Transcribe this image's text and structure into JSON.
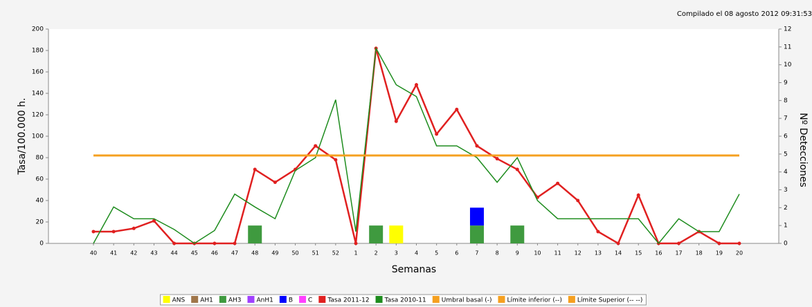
{
  "chart_data": {
    "type": "combo",
    "title": "Compilado el 08 agosto 2012 09:31:53",
    "x_label": "Semanas",
    "y_label": "Tasa/100.000 h.",
    "y2_label": "Nº Detecciones",
    "categories": [
      "40",
      "41",
      "42",
      "43",
      "44",
      "45",
      "46",
      "47",
      "48",
      "49",
      "50",
      "51",
      "52",
      "1",
      "2",
      "3",
      "4",
      "5",
      "6",
      "7",
      "8",
      "9",
      "10",
      "11",
      "12",
      "13",
      "14",
      "15",
      "16",
      "17",
      "18",
      "19",
      "20"
    ],
    "ylim": [
      0,
      200
    ],
    "yticks": [
      0,
      20,
      40,
      60,
      80,
      100,
      120,
      140,
      160,
      180,
      200
    ],
    "y2lim": [
      0,
      12
    ],
    "y2ticks": [
      0,
      1,
      2,
      3,
      4,
      5,
      6,
      7,
      8,
      9,
      10,
      11,
      12
    ],
    "series": [
      {
        "name": "ANS",
        "type": "bar",
        "axis": "y2",
        "color": "#ffff00",
        "values": [
          0,
          0,
          0,
          0,
          0,
          0,
          0,
          0,
          0,
          0,
          0,
          0,
          0,
          0,
          0,
          1,
          0,
          0,
          0,
          0,
          0,
          0,
          0,
          0,
          0,
          0,
          0,
          0,
          0,
          0,
          0,
          0,
          0
        ]
      },
      {
        "name": "AH1",
        "type": "bar",
        "axis": "y2",
        "color": "#a0764a",
        "values": [
          0,
          0,
          0,
          0,
          0,
          0,
          0,
          0,
          0,
          0,
          0,
          0,
          0,
          0,
          0,
          0,
          0,
          0,
          0,
          0,
          0,
          0,
          0,
          0,
          0,
          0,
          0,
          0,
          0,
          0,
          0,
          0,
          0
        ]
      },
      {
        "name": "AH3",
        "type": "bar",
        "axis": "y2",
        "color": "#3f9a3f",
        "values": [
          0,
          0,
          0,
          0,
          0,
          0,
          0,
          0,
          1,
          0,
          0,
          0,
          0,
          0,
          1,
          0,
          0,
          0,
          0,
          1,
          0,
          1,
          0,
          0,
          0,
          0,
          0,
          0,
          0,
          0,
          0,
          0,
          0
        ]
      },
      {
        "name": "AnH1",
        "type": "bar",
        "axis": "y2",
        "color": "#a040ff",
        "values": [
          0,
          0,
          0,
          0,
          0,
          0,
          0,
          0,
          0,
          0,
          0,
          0,
          0,
          0,
          0,
          0,
          0,
          0,
          0,
          0,
          0,
          0,
          0,
          0,
          0,
          0,
          0,
          0,
          0,
          0,
          0,
          0,
          0
        ]
      },
      {
        "name": "B",
        "type": "bar",
        "axis": "y2",
        "color": "#0000ff",
        "values": [
          0,
          0,
          0,
          0,
          0,
          0,
          0,
          0,
          0,
          0,
          0,
          0,
          0,
          0,
          0,
          0,
          0,
          0,
          0,
          1,
          0,
          0,
          0,
          0,
          0,
          0,
          0,
          0,
          0,
          0,
          0,
          0,
          0
        ]
      },
      {
        "name": "C",
        "type": "bar",
        "axis": "y2",
        "color": "#ff40ff",
        "values": [
          0,
          0,
          0,
          0,
          0,
          0,
          0,
          0,
          0,
          0,
          0,
          0,
          0,
          0,
          0,
          0,
          0,
          0,
          0,
          0,
          0,
          0,
          0,
          0,
          0,
          0,
          0,
          0,
          0,
          0,
          0,
          0,
          0
        ]
      },
      {
        "name": "Tasa 2011-12",
        "type": "line",
        "markers": true,
        "color": "#e02020",
        "values": [
          11,
          11,
          14,
          21,
          0,
          0,
          0,
          0,
          69,
          57,
          69,
          91,
          78,
          0,
          182,
          114,
          148,
          102,
          125,
          91,
          79,
          69,
          43,
          56,
          40,
          11,
          0,
          45,
          0,
          0,
          11,
          0,
          0
        ]
      },
      {
        "name": "Tasa 2010-11",
        "type": "line",
        "color": "#1e8c1e",
        "values": [
          0,
          34,
          23,
          23,
          13,
          0,
          12,
          46,
          34,
          23,
          68,
          80,
          134,
          11,
          182,
          148,
          137,
          91,
          91,
          80,
          57,
          80,
          40,
          23,
          23,
          23,
          23,
          23,
          0,
          23,
          11,
          11,
          46
        ]
      },
      {
        "name": "Umbral basal (-)",
        "type": "line",
        "color": "#f5a020",
        "values": [
          82,
          82,
          82,
          82,
          82,
          82,
          82,
          82,
          82,
          82,
          82,
          82,
          82,
          82,
          82,
          82,
          82,
          82,
          82,
          82,
          82,
          82,
          82,
          82,
          82,
          82,
          82,
          82,
          82,
          82,
          82,
          82,
          82
        ]
      },
      {
        "name": "Límite inferior (--)",
        "type": "line",
        "color": "#f5a020",
        "values": [
          null,
          null,
          null,
          null,
          null,
          null,
          null,
          null,
          null,
          null,
          null,
          null,
          null,
          null,
          null,
          null,
          null,
          null,
          null,
          null,
          null,
          null,
          null,
          null,
          null,
          null,
          null,
          null,
          null,
          null,
          null,
          null,
          null
        ]
      },
      {
        "name": "Límite Superior (-- --)",
        "type": "line",
        "color": "#f5a020",
        "values": [
          null,
          null,
          null,
          null,
          null,
          null,
          null,
          null,
          null,
          null,
          null,
          null,
          null,
          null,
          null,
          null,
          null,
          null,
          null,
          null,
          null,
          null,
          null,
          null,
          null,
          null,
          null,
          null,
          null,
          null,
          null,
          null,
          null
        ]
      }
    ]
  }
}
